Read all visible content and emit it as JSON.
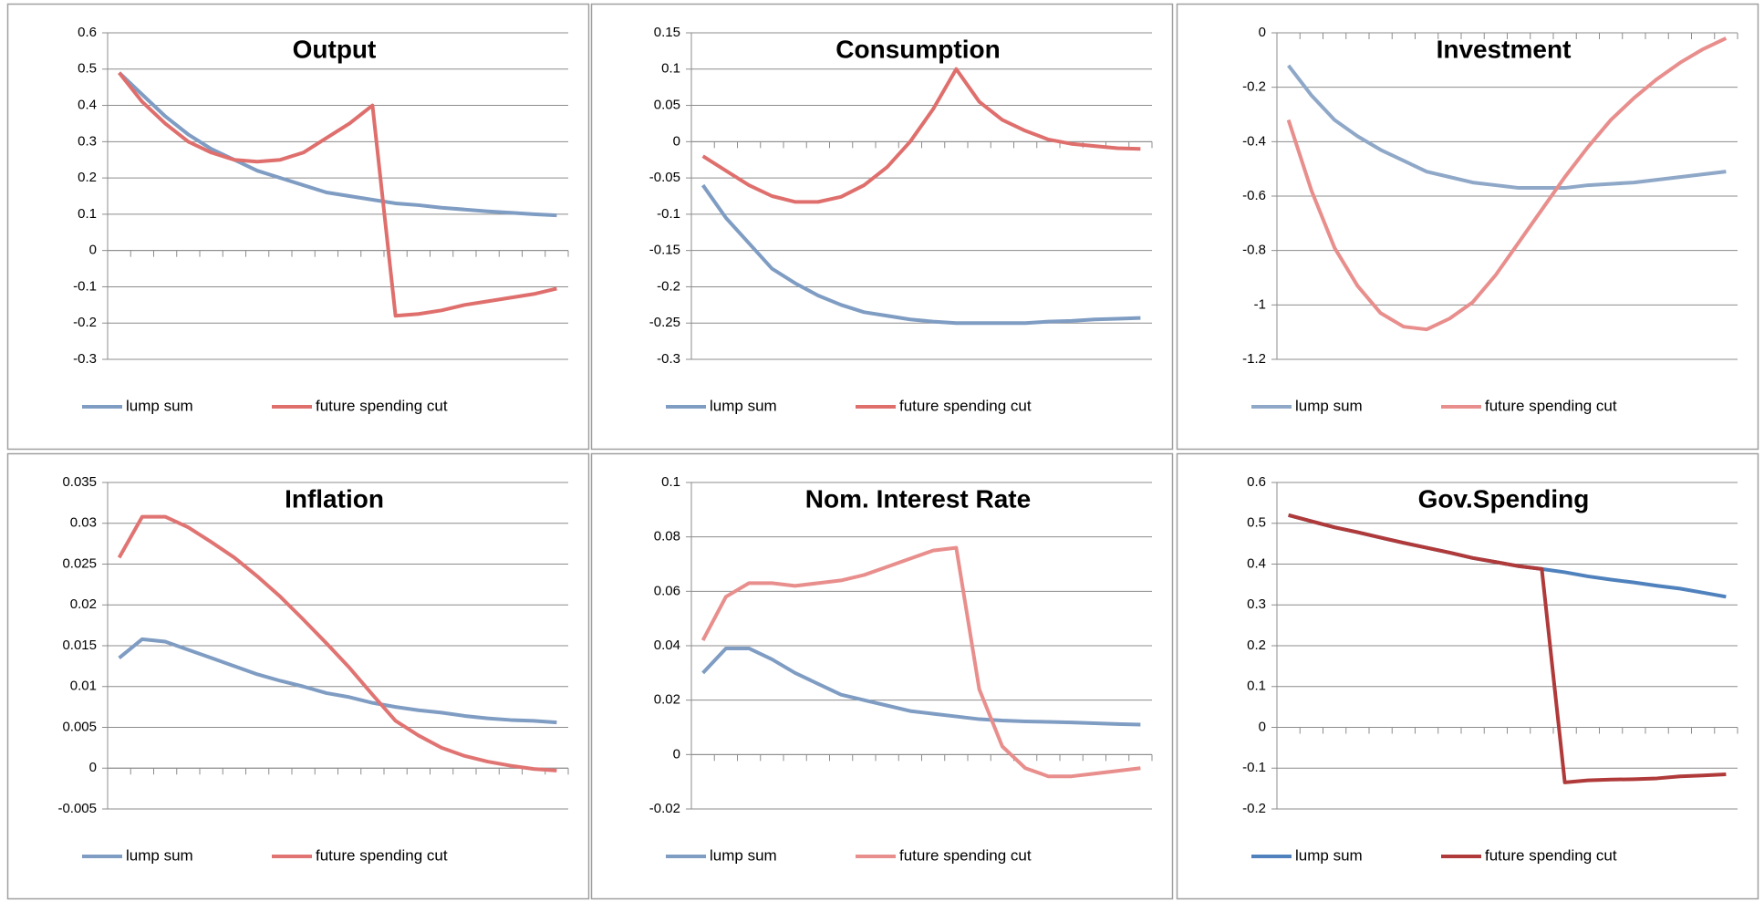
{
  "chart_data": [
    {
      "type": "line",
      "title": "Output",
      "categories": [
        null,
        null,
        null,
        null,
        null,
        null,
        null,
        null,
        null,
        null,
        null,
        null,
        null,
        null,
        null,
        null,
        null,
        null,
        null,
        null
      ],
      "series": [
        {
          "name": "lump sum",
          "color": "#7f9cc3",
          "values": [
            0.49,
            0.43,
            0.37,
            0.32,
            0.28,
            0.25,
            0.22,
            0.2,
            0.18,
            0.16,
            0.15,
            0.14,
            0.13,
            0.125,
            0.118,
            0.113,
            0.108,
            0.104,
            0.1,
            0.097
          ]
        },
        {
          "name": "future spending cut",
          "color": "#df6f6d",
          "values": [
            0.49,
            0.41,
            0.35,
            0.3,
            0.27,
            0.25,
            0.245,
            0.25,
            0.27,
            0.31,
            0.35,
            0.4,
            -0.18,
            -0.175,
            -0.165,
            -0.15,
            -0.14,
            -0.13,
            -0.12,
            -0.105
          ]
        }
      ],
      "ylim": [
        -0.3,
        0.6
      ],
      "yticks": [
        -0.3,
        -0.2,
        -0.1,
        0,
        0.1,
        0.2,
        0.3,
        0.4,
        0.5,
        0.6
      ],
      "grid": true,
      "legend": "bottom"
    },
    {
      "type": "line",
      "title": "Consumption",
      "categories": [
        null,
        null,
        null,
        null,
        null,
        null,
        null,
        null,
        null,
        null,
        null,
        null,
        null,
        null,
        null,
        null,
        null,
        null,
        null,
        null
      ],
      "series": [
        {
          "name": "lump sum",
          "color": "#7f9cc3",
          "values": [
            -0.06,
            -0.105,
            -0.14,
            -0.175,
            -0.195,
            -0.212,
            -0.225,
            -0.235,
            -0.24,
            -0.245,
            -0.248,
            -0.25,
            -0.25,
            -0.25,
            -0.25,
            -0.248,
            -0.247,
            -0.245,
            -0.244,
            -0.243
          ]
        },
        {
          "name": "future spending cut",
          "color": "#df6f6d",
          "values": [
            -0.02,
            -0.04,
            -0.06,
            -0.075,
            -0.083,
            -0.083,
            -0.076,
            -0.06,
            -0.035,
            0,
            0.045,
            0.1,
            0.055,
            0.03,
            0.015,
            0.003,
            -0.003,
            -0.006,
            -0.009,
            -0.01
          ]
        }
      ],
      "ylim": [
        -0.3,
        0.15
      ],
      "yticks": [
        -0.3,
        -0.25,
        -0.2,
        -0.15,
        -0.1,
        -0.05,
        0,
        0.05,
        0.1,
        0.15
      ],
      "grid": true,
      "legend": "bottom"
    },
    {
      "type": "line",
      "title": "Investment",
      "categories": [
        null,
        null,
        null,
        null,
        null,
        null,
        null,
        null,
        null,
        null,
        null,
        null,
        null,
        null,
        null,
        null,
        null,
        null,
        null,
        null
      ],
      "series": [
        {
          "name": "lump sum",
          "color": "#8fa8c8",
          "values": [
            -0.12,
            -0.23,
            -0.32,
            -0.38,
            -0.43,
            -0.47,
            -0.51,
            -0.53,
            -0.55,
            -0.56,
            -0.57,
            -0.57,
            -0.57,
            -0.56,
            -0.555,
            -0.55,
            -0.54,
            -0.53,
            -0.52,
            -0.51
          ]
        },
        {
          "name": "future spending cut",
          "color": "#e88e8c",
          "values": [
            -0.32,
            -0.58,
            -0.79,
            -0.93,
            -1.03,
            -1.08,
            -1.09,
            -1.05,
            -0.99,
            -0.89,
            -0.77,
            -0.65,
            -0.53,
            -0.42,
            -0.32,
            -0.24,
            -0.17,
            -0.11,
            -0.06,
            -0.02
          ]
        }
      ],
      "ylim": [
        -1.2,
        0
      ],
      "yticks": [
        -1.2,
        -1,
        -0.8,
        -0.6,
        -0.4,
        -0.2,
        0
      ],
      "grid": true,
      "legend": "bottom"
    },
    {
      "type": "line",
      "title": "Inflation",
      "categories": [
        null,
        null,
        null,
        null,
        null,
        null,
        null,
        null,
        null,
        null,
        null,
        null,
        null,
        null,
        null,
        null,
        null,
        null,
        null,
        null
      ],
      "series": [
        {
          "name": "lump sum",
          "color": "#7f9cc3",
          "values": [
            0.0135,
            0.0158,
            0.0155,
            0.0145,
            0.0135,
            0.0125,
            0.0115,
            0.0107,
            0.01,
            0.0092,
            0.0087,
            0.008,
            0.0075,
            0.0071,
            0.0068,
            0.0064,
            0.0061,
            0.0059,
            0.0058,
            0.0056
          ]
        },
        {
          "name": "future spending cut",
          "color": "#e07472",
          "values": [
            0.0258,
            0.0308,
            0.0308,
            0.0295,
            0.0277,
            0.0258,
            0.0235,
            0.021,
            0.0182,
            0.0153,
            0.0123,
            0.009,
            0.0058,
            0.004,
            0.0025,
            0.0015,
            0.0008,
            0.0003,
            -0.0001,
            -0.0003
          ]
        }
      ],
      "ylim": [
        -0.005,
        0.035
      ],
      "yticks": [
        -0.005,
        0,
        0.005,
        0.01,
        0.015,
        0.02,
        0.025,
        0.03,
        0.035
      ],
      "grid": true,
      "legend": "bottom"
    },
    {
      "type": "line",
      "title": "Nom. Interest Rate",
      "categories": [
        null,
        null,
        null,
        null,
        null,
        null,
        null,
        null,
        null,
        null,
        null,
        null,
        null,
        null,
        null,
        null,
        null,
        null,
        null,
        null
      ],
      "series": [
        {
          "name": "lump sum",
          "color": "#7f9cc3",
          "values": [
            0.03,
            0.039,
            0.039,
            0.035,
            0.03,
            0.026,
            0.022,
            0.02,
            0.018,
            0.016,
            0.015,
            0.014,
            0.013,
            0.0125,
            0.0122,
            0.012,
            0.0118,
            0.0115,
            0.0112,
            0.011
          ]
        },
        {
          "name": "future spending cut",
          "color": "#e88e8c",
          "values": [
            0.042,
            0.058,
            0.063,
            0.063,
            0.062,
            0.063,
            0.064,
            0.066,
            0.069,
            0.072,
            0.075,
            0.076,
            0.024,
            0.003,
            -0.005,
            -0.008,
            -0.008,
            -0.007,
            -0.006,
            -0.005
          ]
        }
      ],
      "ylim": [
        -0.02,
        0.1
      ],
      "yticks": [
        -0.02,
        0,
        0.02,
        0.04,
        0.06,
        0.08,
        0.1
      ],
      "grid": true,
      "legend": "bottom"
    },
    {
      "type": "line",
      "title": "Gov.Spending",
      "categories": [
        null,
        null,
        null,
        null,
        null,
        null,
        null,
        null,
        null,
        null,
        null,
        null,
        null,
        null,
        null,
        null,
        null,
        null,
        null,
        null
      ],
      "series": [
        {
          "name": "lump sum",
          "color": "#4f81bd",
          "values": [
            0.52,
            0.505,
            0.49,
            0.478,
            0.465,
            0.452,
            0.44,
            0.428,
            0.415,
            0.405,
            0.395,
            0.388,
            0.38,
            0.37,
            0.362,
            0.355,
            0.347,
            0.34,
            0.33,
            0.32
          ]
        },
        {
          "name": "future spending cut",
          "color": "#b03a3a",
          "values": [
            0.52,
            0.505,
            0.49,
            0.478,
            0.465,
            0.452,
            0.44,
            0.428,
            0.415,
            0.405,
            0.395,
            0.388,
            -0.135,
            -0.13,
            -0.128,
            -0.127,
            -0.125,
            -0.12,
            -0.118,
            -0.115
          ]
        }
      ],
      "ylim": [
        -0.2,
        0.6
      ],
      "yticks": [
        -0.2,
        -0.1,
        0,
        0.1,
        0.2,
        0.3,
        0.4,
        0.5,
        0.6
      ],
      "grid": true,
      "legend": "bottom"
    }
  ]
}
